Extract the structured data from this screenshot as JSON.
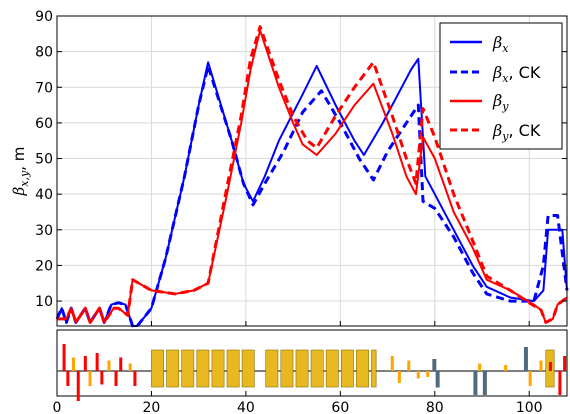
{
  "chart_data": {
    "type": "line",
    "ylabel_main": "β",
    "ylabel_sub": "x,y",
    "ylabel_unit": ", m",
    "xlim": [
      0,
      108
    ],
    "ylim": [
      3,
      90
    ],
    "xticks": [
      0,
      20,
      40,
      60,
      80,
      100
    ],
    "yticks": [
      10,
      20,
      30,
      40,
      50,
      60,
      70,
      80,
      90
    ],
    "grid": true,
    "legend_position": "top-right",
    "series": [
      {
        "name_main": "β",
        "name_sub": "x",
        "name_suffix": "",
        "color": "#0000ff",
        "dash": "solid",
        "points": [
          [
            0,
            5
          ],
          [
            1,
            8
          ],
          [
            2,
            4
          ],
          [
            3,
            8
          ],
          [
            4,
            4
          ],
          [
            6,
            8
          ],
          [
            7,
            4
          ],
          [
            9,
            8
          ],
          [
            10,
            4
          ],
          [
            11.5,
            9
          ],
          [
            13,
            9.5
          ],
          [
            14.5,
            9
          ],
          [
            16,
            3
          ],
          [
            17,
            3
          ],
          [
            20,
            8
          ],
          [
            23,
            22
          ],
          [
            27,
            45
          ],
          [
            30,
            65
          ],
          [
            32,
            77
          ],
          [
            37,
            55
          ],
          [
            39.5,
            43
          ],
          [
            41.5,
            38
          ],
          [
            44,
            45
          ],
          [
            47,
            55
          ],
          [
            52,
            68
          ],
          [
            55,
            76
          ],
          [
            59,
            65
          ],
          [
            63,
            55
          ],
          [
            65,
            51
          ],
          [
            69,
            60
          ],
          [
            73,
            70
          ],
          [
            75,
            75
          ],
          [
            76.5,
            78
          ],
          [
            78,
            45
          ],
          [
            80,
            40
          ],
          [
            84,
            30
          ],
          [
            88,
            20
          ],
          [
            91,
            14
          ],
          [
            96,
            11
          ],
          [
            101,
            10
          ],
          [
            103,
            13
          ],
          [
            104,
            30
          ],
          [
            107,
            30
          ],
          [
            108,
            13
          ]
        ]
      },
      {
        "name_main": "β",
        "name_sub": "x",
        "name_suffix": ", CK",
        "color": "#0000ff",
        "dash": "dashed",
        "points": [
          [
            0,
            5
          ],
          [
            1,
            8
          ],
          [
            2,
            4
          ],
          [
            3,
            8
          ],
          [
            4,
            4
          ],
          [
            6,
            8
          ],
          [
            7,
            4
          ],
          [
            9,
            8
          ],
          [
            10,
            4
          ],
          [
            11.5,
            9
          ],
          [
            13,
            9.5
          ],
          [
            14.5,
            9
          ],
          [
            16,
            3
          ],
          [
            17,
            3
          ],
          [
            20,
            8
          ],
          [
            23,
            22
          ],
          [
            27,
            45
          ],
          [
            30,
            65
          ],
          [
            32,
            76
          ],
          [
            37,
            55
          ],
          [
            39.5,
            43
          ],
          [
            41.5,
            37
          ],
          [
            44,
            43
          ],
          [
            48,
            52
          ],
          [
            52,
            63
          ],
          [
            56,
            69
          ],
          [
            60,
            60
          ],
          [
            64,
            50
          ],
          [
            67,
            44
          ],
          [
            70,
            52
          ],
          [
            74,
            60
          ],
          [
            76.5,
            65
          ],
          [
            77.5,
            38
          ],
          [
            80,
            36
          ],
          [
            84,
            28
          ],
          [
            88,
            18
          ],
          [
            91,
            12
          ],
          [
            96,
            10
          ],
          [
            101,
            10
          ],
          [
            103,
            20
          ],
          [
            104,
            34
          ],
          [
            106,
            34
          ],
          [
            108,
            13
          ]
        ]
      },
      {
        "name_main": "β",
        "name_sub": "y",
        "name_suffix": "",
        "color": "#ff0000",
        "dash": "solid",
        "points": [
          [
            0,
            5
          ],
          [
            2,
            5
          ],
          [
            3,
            8
          ],
          [
            4,
            4
          ],
          [
            6,
            8
          ],
          [
            7,
            4
          ],
          [
            9,
            8
          ],
          [
            10,
            4
          ],
          [
            12,
            8
          ],
          [
            13,
            8
          ],
          [
            15,
            6
          ],
          [
            16,
            16
          ],
          [
            20,
            13
          ],
          [
            25,
            12
          ],
          [
            29,
            13
          ],
          [
            32,
            15
          ],
          [
            36,
            40
          ],
          [
            39,
            60
          ],
          [
            41,
            75
          ],
          [
            43,
            86
          ],
          [
            47,
            70
          ],
          [
            50,
            60
          ],
          [
            52,
            54
          ],
          [
            55,
            51
          ],
          [
            59,
            57
          ],
          [
            63,
            65
          ],
          [
            67,
            71
          ],
          [
            71,
            57
          ],
          [
            74,
            45
          ],
          [
            76,
            40
          ],
          [
            77.5,
            56
          ],
          [
            80,
            50
          ],
          [
            84,
            35
          ],
          [
            88,
            25
          ],
          [
            91,
            16
          ],
          [
            96,
            13
          ],
          [
            101,
            9
          ],
          [
            102.5,
            7.5
          ],
          [
            103.5,
            4
          ],
          [
            105,
            5
          ],
          [
            106,
            9
          ],
          [
            108,
            11
          ]
        ]
      },
      {
        "name_main": "β",
        "name_sub": "y",
        "name_suffix": ", CK",
        "color": "#ff0000",
        "dash": "dashed",
        "points": [
          [
            0,
            5
          ],
          [
            2,
            5
          ],
          [
            3,
            8
          ],
          [
            4,
            4
          ],
          [
            6,
            8
          ],
          [
            7,
            4
          ],
          [
            9,
            8
          ],
          [
            10,
            4
          ],
          [
            12,
            8
          ],
          [
            13,
            8
          ],
          [
            15,
            6
          ],
          [
            16,
            16
          ],
          [
            20,
            13
          ],
          [
            25,
            12
          ],
          [
            29,
            13
          ],
          [
            32,
            15
          ],
          [
            36,
            42
          ],
          [
            39,
            62
          ],
          [
            41,
            78
          ],
          [
            43,
            87
          ],
          [
            47,
            72
          ],
          [
            50,
            62
          ],
          [
            53,
            55
          ],
          [
            55,
            53
          ],
          [
            59,
            62
          ],
          [
            63,
            70
          ],
          [
            67,
            77
          ],
          [
            71,
            62
          ],
          [
            74,
            50
          ],
          [
            76,
            43
          ],
          [
            77.5,
            64
          ],
          [
            80,
            56
          ],
          [
            84,
            40
          ],
          [
            88,
            27
          ],
          [
            91,
            17
          ],
          [
            96,
            13
          ],
          [
            100,
            9.5
          ],
          [
            102.5,
            7.5
          ],
          [
            103.5,
            4
          ],
          [
            105,
            5
          ],
          [
            106,
            9
          ],
          [
            108,
            11
          ]
        ]
      }
    ]
  },
  "lattice": {
    "xticks": [
      0,
      20,
      40,
      60,
      80,
      100
    ],
    "line_color": "#555555",
    "magnet_color": "#e8b820",
    "magnet_edge": "#8b6d00",
    "magnets": [
      [
        20,
        22.8
      ],
      [
        23.2,
        26
      ],
      [
        26.4,
        29.2
      ],
      [
        29.6,
        32.4
      ],
      [
        32.8,
        35.6
      ],
      [
        36,
        38.8
      ],
      [
        39.2,
        42
      ],
      [
        44.2,
        47
      ],
      [
        47.4,
        50.2
      ],
      [
        50.6,
        53.4
      ],
      [
        53.8,
        56.6
      ],
      [
        57,
        59.8
      ],
      [
        60.2,
        63
      ],
      [
        63.4,
        66.2
      ],
      [
        66.6,
        67.8
      ],
      [
        103.5,
        105.5
      ]
    ],
    "quads": [
      {
        "x": 1.5,
        "h": 0.9,
        "c": "#ff0000"
      },
      {
        "x": 2.3,
        "h": -0.5,
        "c": "#ff0000"
      },
      {
        "x": 3.5,
        "h": 0.45,
        "c": "#ffa500"
      },
      {
        "x": 4.5,
        "h": -1.0,
        "c": "#ff0000"
      },
      {
        "x": 6,
        "h": 0.5,
        "c": "#ff0000"
      },
      {
        "x": 7,
        "h": -0.5,
        "c": "#ffa500"
      },
      {
        "x": 8.5,
        "h": 0.6,
        "c": "#ff0000"
      },
      {
        "x": 9.5,
        "h": -0.45,
        "c": "#ff0000"
      },
      {
        "x": 11,
        "h": 0.35,
        "c": "#ffa500"
      },
      {
        "x": 12.5,
        "h": -0.5,
        "c": "#ff0000"
      },
      {
        "x": 13.5,
        "h": 0.45,
        "c": "#ff0000"
      },
      {
        "x": 15.5,
        "h": 0.25,
        "c": "#ffa500"
      },
      {
        "x": 16.5,
        "h": -0.5,
        "c": "#ff0000"
      },
      {
        "x": 71,
        "h": 0.5,
        "c": "#ffa500"
      },
      {
        "x": 72.5,
        "h": -0.4,
        "c": "#ffa500"
      },
      {
        "x": 74.5,
        "h": 0.35,
        "c": "#ffa500"
      },
      {
        "x": 76.5,
        "h": -0.25,
        "c": "#ffa500"
      },
      {
        "x": 78.5,
        "h": -0.2,
        "c": "#ffa500"
      },
      {
        "x": 79.8,
        "h": 0.4,
        "c": "#4f6b7f"
      },
      {
        "x": 80.5,
        "h": -0.55,
        "c": "#4f6b7f"
      },
      {
        "x": 88.5,
        "h": -0.8,
        "c": "#4f6b7f"
      },
      {
        "x": 89.5,
        "h": 0.25,
        "c": "#ffa500"
      },
      {
        "x": 90.5,
        "h": -0.8,
        "c": "#4f6b7f"
      },
      {
        "x": 95,
        "h": 0.2,
        "c": "#ffa500"
      },
      {
        "x": 99.2,
        "h": 0.8,
        "c": "#4f6b7f"
      },
      {
        "x": 100.2,
        "h": -0.5,
        "c": "#ffa500"
      },
      {
        "x": 102.5,
        "h": 0.35,
        "c": "#ffa500"
      },
      {
        "x": 104.5,
        "h": 0.3,
        "c": "#ff0000"
      },
      {
        "x": 106.5,
        "h": -0.8,
        "c": "#ff0000"
      },
      {
        "x": 107.5,
        "h": 0.5,
        "c": "#ff0000"
      }
    ]
  }
}
